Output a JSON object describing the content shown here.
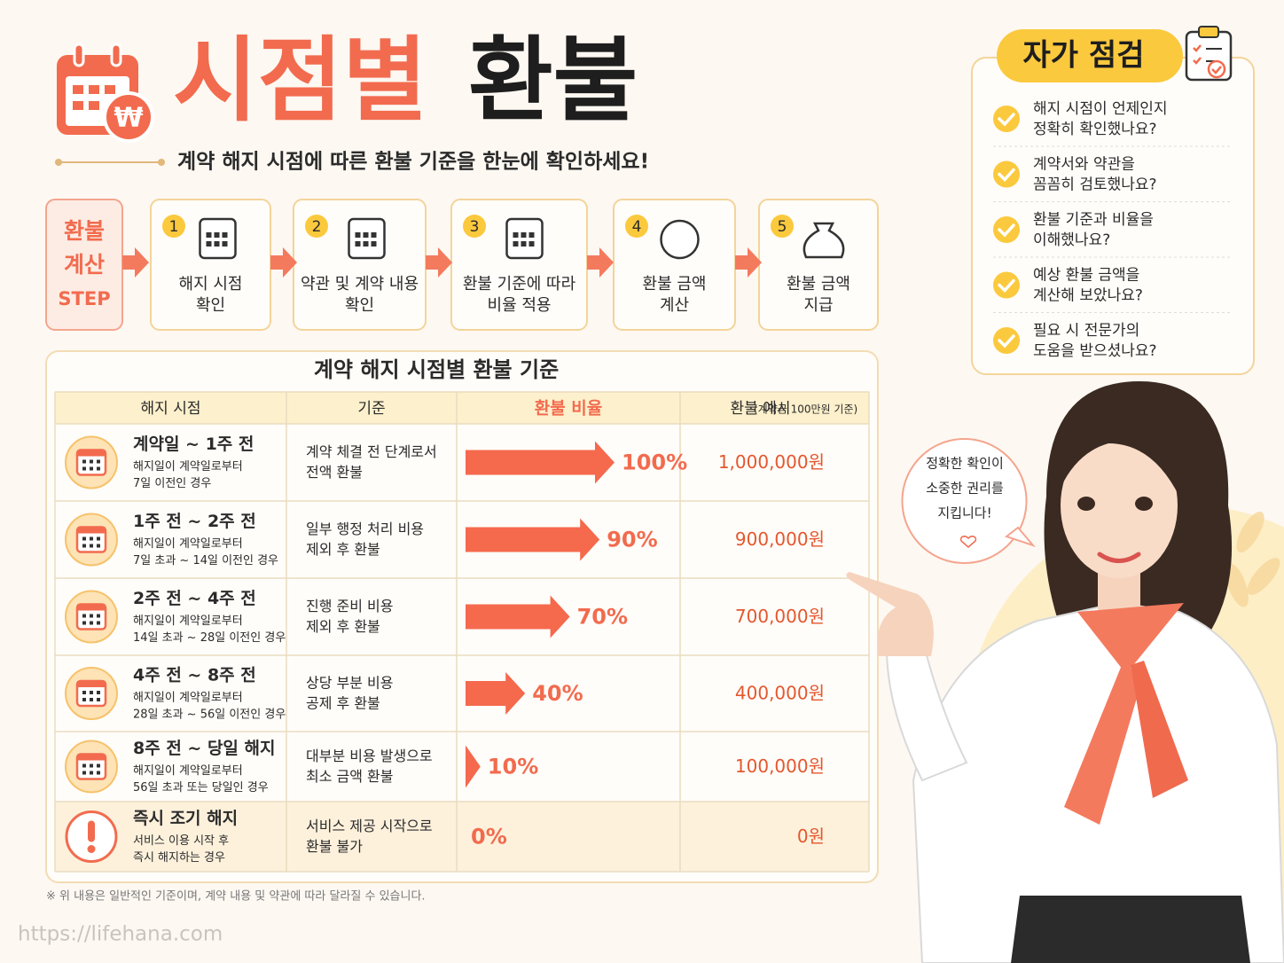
{
  "header": {
    "title_accent": "시점별",
    "title_main": "환불",
    "subtitle": "계약 해지 시점에 따른 환불 기준을 한눈에 확인하세요!"
  },
  "steps": {
    "label_lines": [
      "환불",
      "계산",
      "STEP"
    ],
    "items": [
      {
        "number": 1,
        "lines": [
          "해지 시점",
          "확인"
        ]
      },
      {
        "number": 2,
        "lines": [
          "약관 및 계약 내용",
          "확인"
        ]
      },
      {
        "number": 3,
        "lines": [
          "환불 기준에 따라",
          "비율 적용"
        ]
      },
      {
        "number": 4,
        "lines": [
          "환불 금액",
          "계산"
        ]
      },
      {
        "number": 5,
        "lines": [
          "환불 금액",
          "지급"
        ]
      }
    ]
  },
  "table": {
    "title": "계약 해지 시점별 환불 기준",
    "headers": [
      "해지 시점",
      "기준",
      "환불 비율",
      "환불 예시"
    ],
    "header_note": "(계약금 100만원 기준)",
    "rows": [
      {
        "period": "계약일 ~ 1주 전",
        "desc_lines": [
          "해지일이 계약일로부터",
          "7일 이전인 경우"
        ],
        "basis_lines": [
          "계약 체결 전 단계로서",
          "전액 환불"
        ],
        "ratio": {
          "value": 100,
          "label": "100%"
        },
        "amount": "1,000,000원"
      },
      {
        "period": "1주 전 ~ 2주 전",
        "desc_lines": [
          "해지일이 계약일로부터",
          "7일 초과 ~ 14일 이전인 경우"
        ],
        "basis_lines": [
          "일부 행정 처리 비용",
          "제외 후 환불"
        ],
        "ratio": {
          "value": 90,
          "label": "90%"
        },
        "amount": "900,000원"
      },
      {
        "period": "2주 전 ~ 4주 전",
        "desc_lines": [
          "해지일이 계약일로부터",
          "14일 초과 ~ 28일 이전인 경우"
        ],
        "basis_lines": [
          "진행 준비 비용",
          "제외 후 환불"
        ],
        "ratio": {
          "value": 70,
          "label": "70%"
        },
        "amount": "700,000원"
      },
      {
        "period": "4주 전 ~ 8주 전",
        "desc_lines": [
          "해지일이 계약일로부터",
          "28일 초과 ~ 56일 이전인 경우"
        ],
        "basis_lines": [
          "상당 부분 비용",
          "공제 후 환불"
        ],
        "ratio": {
          "value": 40,
          "label": "40%"
        },
        "amount": "400,000원"
      },
      {
        "period": "8주 전 ~ 당일 해지",
        "desc_lines": [
          "해지일이 계약일로부터",
          "56일 초과 또는 당일인 경우"
        ],
        "basis_lines": [
          "대부분 비용 발생으로",
          "최소 금액 환불"
        ],
        "ratio": {
          "value": 10,
          "label": "10%"
        },
        "amount": "100,000원"
      },
      {
        "period": "즉시 조기 해지",
        "desc_lines": [
          "서비스 이용 시작 후",
          "즉시 해지하는 경우"
        ],
        "basis_lines": [
          "서비스 제공 시작으로",
          "환불 불가"
        ],
        "ratio": {
          "value": 0,
          "label": "0%"
        },
        "amount": "0원"
      }
    ]
  },
  "checklist": {
    "title": "자가 점검",
    "items": [
      {
        "lines": [
          "해지 시점이 언제인지",
          "정확히 확인했나요?"
        ]
      },
      {
        "lines": [
          "계약서와 약관을",
          "꼼꼼히 검토했나요?"
        ]
      },
      {
        "lines": [
          "환불 기준과 비율을",
          "이해했나요?"
        ]
      },
      {
        "lines": [
          "예상 환불 금액을",
          "계산해 보았나요?"
        ]
      },
      {
        "lines": [
          "필요 시 전문가의",
          "도움을 받으셨나요?"
        ]
      }
    ]
  },
  "speech": {
    "lines": [
      "정확한 확인이",
      "소중한 권리를",
      "지킵니다!"
    ]
  },
  "footnote": "※ 위 내용은 일반적인 기준이며, 계약 내용 및 약관에 따라 달라질 수 있습니다.",
  "url": "https://lifehana.com"
}
